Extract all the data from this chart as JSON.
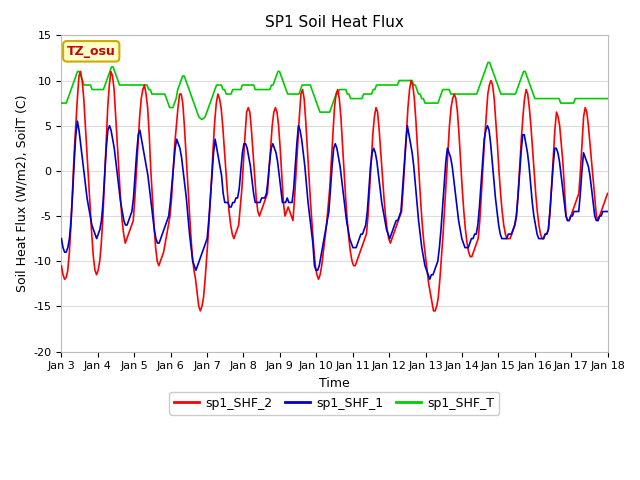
{
  "title": "SP1 Soil Heat Flux",
  "xlabel": "Time",
  "ylabel": "Soil Heat Flux (W/m2), SoilT (C)",
  "ylim": [
    -20,
    15
  ],
  "yticks": [
    -20,
    -15,
    -10,
    -5,
    0,
    5,
    10,
    15
  ],
  "xtick_labels": [
    "Jan 3",
    "Jan 4",
    "Jan 5",
    "Jan 6",
    "Jan 7",
    "Jan 8",
    "Jan 9",
    "Jan 10",
    "Jan 11",
    "Jan 12",
    "Jan 13",
    "Jan 14",
    "Jan 15",
    "Jan 16",
    "Jan 17",
    "Jan 18"
  ],
  "legend_labels": [
    "sp1_SHF_2",
    "sp1_SHF_1",
    "sp1_SHF_T"
  ],
  "legend_colors": [
    "#ff0000",
    "#0000cc",
    "#00cc00"
  ],
  "annotation_text": "TZ_osu",
  "annotation_bbox_facecolor": "#ffffcc",
  "annotation_bbox_edgecolor": "#ccaa00",
  "fig_bg_color": "#ffffff",
  "plot_bg_color": "#ffffff",
  "grid_color": "#dddddd",
  "title_fontsize": 11,
  "axis_fontsize": 9,
  "tick_fontsize": 8,
  "legend_fontsize": 9,
  "line_width": 1.2,
  "shf2_data": [
    -10.5,
    -11.5,
    -12.0,
    -11.8,
    -11.0,
    -9.0,
    -6.0,
    -2.0,
    2.0,
    5.0,
    8.0,
    10.5,
    11.0,
    10.0,
    8.0,
    5.0,
    2.0,
    -1.0,
    -4.0,
    -7.0,
    -9.5,
    -11.0,
    -11.5,
    -11.0,
    -10.0,
    -8.0,
    -5.0,
    -1.0,
    3.0,
    7.0,
    9.5,
    11.0,
    10.5,
    9.0,
    6.0,
    3.0,
    0.0,
    -3.0,
    -5.5,
    -7.0,
    -8.0,
    -7.5,
    -7.0,
    -6.5,
    -6.0,
    -5.5,
    -3.0,
    0.0,
    3.0,
    6.0,
    8.0,
    9.0,
    9.5,
    8.5,
    7.0,
    4.0,
    0.0,
    -3.0,
    -6.0,
    -8.5,
    -10.0,
    -10.5,
    -10.0,
    -9.5,
    -9.0,
    -8.0,
    -7.0,
    -6.0,
    -5.0,
    -3.0,
    0.0,
    3.0,
    5.0,
    7.0,
    8.5,
    8.5,
    7.5,
    5.0,
    2.0,
    -1.0,
    -4.0,
    -7.0,
    -9.5,
    -11.0,
    -12.0,
    -13.5,
    -15.0,
    -15.5,
    -15.0,
    -14.0,
    -12.0,
    -9.5,
    -7.0,
    -4.0,
    -1.0,
    2.5,
    5.5,
    7.5,
    8.5,
    8.0,
    7.0,
    5.0,
    2.5,
    0.0,
    -2.5,
    -4.5,
    -6.0,
    -7.0,
    -7.5,
    -7.0,
    -6.5,
    -6.0,
    -4.0,
    -2.0,
    1.0,
    4.0,
    6.5,
    7.0,
    6.5,
    4.5,
    2.0,
    -0.5,
    -3.0,
    -4.5,
    -5.0,
    -4.5,
    -4.0,
    -3.5,
    -3.0,
    -2.5,
    0.0,
    2.5,
    5.0,
    6.5,
    7.0,
    6.5,
    5.0,
    2.5,
    -0.5,
    -3.5,
    -5.0,
    -4.5,
    -4.0,
    -4.5,
    -5.0,
    -5.5,
    -3.0,
    0.0,
    3.0,
    6.0,
    8.5,
    9.0,
    8.0,
    5.5,
    2.5,
    -0.5,
    -3.5,
    -6.0,
    -8.5,
    -10.5,
    -11.5,
    -12.0,
    -11.5,
    -10.5,
    -9.0,
    -7.5,
    -6.0,
    -4.0,
    -2.0,
    1.0,
    4.0,
    7.0,
    8.5,
    9.0,
    8.0,
    6.0,
    3.0,
    0.0,
    -3.0,
    -5.5,
    -7.5,
    -9.0,
    -10.0,
    -10.5,
    -10.5,
    -10.0,
    -9.5,
    -9.0,
    -8.5,
    -8.0,
    -7.5,
    -7.0,
    -5.0,
    -2.0,
    1.0,
    4.0,
    6.0,
    7.0,
    6.5,
    4.5,
    2.0,
    -0.5,
    -3.0,
    -5.0,
    -6.5,
    -7.5,
    -8.0,
    -7.5,
    -7.0,
    -6.5,
    -6.0,
    -5.5,
    -5.0,
    -4.5,
    -2.0,
    1.0,
    4.0,
    7.0,
    9.0,
    10.0,
    9.5,
    8.0,
    5.5,
    2.5,
    -0.5,
    -3.5,
    -6.0,
    -8.0,
    -9.5,
    -11.0,
    -12.5,
    -13.5,
    -14.5,
    -15.5,
    -15.5,
    -15.0,
    -14.0,
    -12.0,
    -9.5,
    -7.0,
    -4.0,
    -1.0,
    2.0,
    5.0,
    7.0,
    8.0,
    8.5,
    8.0,
    6.5,
    4.0,
    1.0,
    -2.0,
    -4.5,
    -6.5,
    -8.0,
    -9.0,
    -9.5,
    -9.5,
    -9.0,
    -8.5,
    -8.0,
    -7.5,
    -5.5,
    -2.5,
    0.5,
    3.5,
    6.0,
    8.5,
    9.5,
    10.0,
    9.5,
    8.0,
    5.5,
    3.0,
    0.0,
    -2.5,
    -4.5,
    -6.0,
    -7.0,
    -7.5,
    -7.5,
    -7.5,
    -7.0,
    -6.5,
    -6.0,
    -5.0,
    -2.5,
    0.5,
    3.5,
    6.0,
    8.0,
    9.0,
    8.5,
    7.0,
    5.0,
    2.5,
    0.0,
    -2.5,
    -4.5,
    -6.0,
    -7.0,
    -7.5,
    -7.5,
    -7.0,
    -7.0,
    -6.5,
    -4.5,
    -1.5,
    1.5,
    4.5,
    6.5,
    6.0,
    5.0,
    3.0,
    1.0,
    -2.0,
    -5.0,
    -5.5,
    -5.5,
    -5.0,
    -4.5,
    -4.0,
    -3.5,
    -3.0,
    -2.5,
    0.0,
    3.0,
    6.0,
    7.0,
    6.5,
    5.0,
    3.0,
    1.0,
    -1.0,
    -3.0,
    -5.0,
    -5.5,
    -5.0,
    -4.5,
    -4.0,
    -3.5,
    -3.0,
    -2.5
  ],
  "shf1_data": [
    -7.5,
    -8.5,
    -9.0,
    -9.0,
    -8.5,
    -7.5,
    -5.5,
    -2.5,
    1.0,
    4.0,
    5.5,
    4.5,
    3.0,
    1.5,
    0.0,
    -1.5,
    -3.0,
    -4.0,
    -5.0,
    -6.0,
    -6.5,
    -7.0,
    -7.5,
    -7.0,
    -6.5,
    -5.5,
    -3.5,
    -0.5,
    2.5,
    4.5,
    5.0,
    4.5,
    3.5,
    2.5,
    1.0,
    -0.5,
    -2.0,
    -3.5,
    -4.5,
    -5.5,
    -6.0,
    -6.0,
    -5.5,
    -5.0,
    -4.5,
    -3.0,
    -0.5,
    2.0,
    4.0,
    4.5,
    3.5,
    2.5,
    1.5,
    0.5,
    -0.5,
    -2.0,
    -3.5,
    -5.0,
    -6.5,
    -7.5,
    -8.0,
    -8.0,
    -7.5,
    -7.0,
    -6.5,
    -6.0,
    -5.5,
    -5.0,
    -3.5,
    -1.5,
    0.5,
    2.5,
    3.5,
    3.0,
    2.5,
    1.5,
    0.0,
    -1.5,
    -3.0,
    -5.0,
    -7.0,
    -8.5,
    -10.0,
    -10.5,
    -11.0,
    -10.5,
    -10.0,
    -9.5,
    -9.0,
    -8.5,
    -8.0,
    -7.5,
    -5.5,
    -3.0,
    -0.5,
    2.0,
    3.5,
    2.5,
    1.5,
    0.5,
    -0.5,
    -2.5,
    -3.5,
    -3.5,
    -3.5,
    -4.0,
    -4.0,
    -3.5,
    -3.5,
    -3.0,
    -3.0,
    -2.0,
    0.0,
    2.0,
    3.0,
    3.0,
    2.5,
    1.5,
    0.5,
    -1.0,
    -2.5,
    -3.5,
    -3.5,
    -3.5,
    -3.5,
    -3.0,
    -3.0,
    -3.0,
    -2.5,
    -1.0,
    1.0,
    2.5,
    3.0,
    2.5,
    2.0,
    1.0,
    -0.5,
    -2.0,
    -3.5,
    -3.5,
    -3.5,
    -3.0,
    -3.5,
    -3.5,
    -3.5,
    -2.0,
    0.5,
    3.0,
    5.0,
    4.5,
    3.5,
    2.0,
    0.5,
    -1.5,
    -3.5,
    -5.0,
    -6.5,
    -8.0,
    -10.5,
    -11.0,
    -11.0,
    -10.5,
    -9.5,
    -8.5,
    -7.5,
    -6.5,
    -5.5,
    -4.5,
    -2.0,
    0.5,
    2.5,
    3.0,
    2.5,
    1.5,
    0.5,
    -1.0,
    -2.5,
    -4.0,
    -5.5,
    -6.5,
    -7.5,
    -8.0,
    -8.5,
    -8.5,
    -8.5,
    -8.0,
    -7.5,
    -7.0,
    -7.0,
    -6.5,
    -6.0,
    -4.5,
    -2.0,
    0.5,
    2.0,
    2.5,
    2.0,
    1.0,
    -0.5,
    -2.0,
    -3.5,
    -4.5,
    -5.5,
    -6.5,
    -7.0,
    -7.5,
    -7.0,
    -6.5,
    -6.0,
    -5.5,
    -5.5,
    -5.0,
    -4.5,
    -2.0,
    0.5,
    3.0,
    5.0,
    4.0,
    3.0,
    2.0,
    0.5,
    -1.5,
    -3.5,
    -5.5,
    -7.0,
    -8.5,
    -9.5,
    -10.5,
    -11.0,
    -11.5,
    -12.0,
    -11.5,
    -11.5,
    -11.0,
    -10.5,
    -10.0,
    -8.5,
    -6.5,
    -4.0,
    -1.5,
    1.0,
    2.5,
    2.0,
    1.5,
    0.5,
    -1.0,
    -2.5,
    -4.0,
    -5.5,
    -6.5,
    -7.5,
    -8.0,
    -8.5,
    -8.5,
    -8.5,
    -8.0,
    -7.5,
    -7.5,
    -7.0,
    -7.0,
    -6.0,
    -4.0,
    -1.5,
    1.0,
    3.5,
    4.5,
    5.0,
    4.5,
    3.0,
    1.0,
    -1.0,
    -3.0,
    -4.5,
    -6.0,
    -7.0,
    -7.5,
    -7.5,
    -7.5,
    -7.5,
    -7.0,
    -7.0,
    -7.0,
    -6.5,
    -6.0,
    -5.0,
    -3.0,
    -0.5,
    2.0,
    4.0,
    4.0,
    3.0,
    2.0,
    0.5,
    -1.5,
    -3.5,
    -5.0,
    -6.0,
    -7.0,
    -7.5,
    -7.5,
    -7.5,
    -7.5,
    -7.0,
    -7.0,
    -6.5,
    -4.5,
    -2.0,
    0.5,
    2.5,
    2.5,
    2.0,
    1.0,
    -0.5,
    -2.0,
    -3.5,
    -5.0,
    -5.5,
    -5.5,
    -5.0,
    -5.0,
    -4.5,
    -4.5,
    -4.5,
    -4.5,
    -2.5,
    0.0,
    2.0,
    1.5,
    1.0,
    0.5,
    -0.5,
    -2.0,
    -3.5,
    -5.0,
    -5.5,
    -5.5,
    -5.0,
    -5.0,
    -4.5,
    -4.5,
    -4.5,
    -4.5
  ],
  "shfT_data": [
    7.5,
    7.5,
    7.5,
    7.5,
    8.0,
    8.5,
    9.0,
    9.5,
    10.0,
    10.5,
    11.0,
    11.0,
    10.5,
    10.0,
    9.5,
    9.5,
    9.5,
    9.5,
    9.5,
    9.0,
    9.0,
    9.0,
    9.0,
    9.0,
    9.0,
    9.0,
    9.0,
    9.5,
    10.0,
    10.5,
    11.0,
    11.5,
    11.5,
    11.0,
    10.5,
    10.0,
    9.5,
    9.5,
    9.5,
    9.5,
    9.5,
    9.5,
    9.5,
    9.5,
    9.5,
    9.5,
    9.5,
    9.5,
    9.5,
    9.5,
    9.5,
    9.5,
    9.5,
    9.5,
    9.0,
    9.0,
    8.5,
    8.5,
    8.5,
    8.5,
    8.5,
    8.5,
    8.5,
    8.5,
    8.5,
    8.0,
    7.5,
    7.0,
    7.0,
    7.0,
    7.5,
    8.0,
    9.0,
    9.5,
    10.0,
    10.5,
    10.5,
    10.0,
    9.5,
    9.0,
    8.5,
    8.0,
    7.5,
    7.0,
    6.5,
    6.0,
    5.8,
    5.7,
    5.8,
    6.0,
    6.5,
    7.0,
    7.5,
    8.0,
    8.5,
    9.0,
    9.5,
    9.5,
    9.5,
    9.5,
    9.0,
    9.0,
    8.5,
    8.5,
    8.5,
    8.5,
    9.0,
    9.0,
    9.0,
    9.0,
    9.0,
    9.0,
    9.5,
    9.5,
    9.5,
    9.5,
    9.5,
    9.5,
    9.5,
    9.5,
    9.0,
    9.0,
    9.0,
    9.0,
    9.0,
    9.0,
    9.0,
    9.0,
    9.0,
    9.0,
    9.5,
    9.5,
    10.0,
    10.5,
    11.0,
    11.0,
    10.5,
    10.0,
    9.5,
    9.0,
    8.5,
    8.5,
    8.5,
    8.5,
    8.5,
    8.5,
    8.5,
    8.5,
    9.0,
    9.5,
    9.5,
    9.5,
    9.5,
    9.5,
    9.5,
    9.0,
    8.5,
    8.0,
    7.5,
    7.0,
    6.5,
    6.5,
    6.5,
    6.5,
    6.5,
    6.5,
    6.5,
    7.0,
    7.5,
    8.0,
    8.5,
    8.5,
    9.0,
    9.0,
    9.0,
    9.0,
    9.0,
    8.5,
    8.5,
    8.0,
    8.0,
    8.0,
    8.0,
    8.0,
    8.0,
    8.0,
    8.0,
    8.5,
    8.5,
    8.5,
    8.5,
    8.5,
    8.5,
    9.0,
    9.0,
    9.5,
    9.5,
    9.5,
    9.5,
    9.5,
    9.5,
    9.5,
    9.5,
    9.5,
    9.5,
    9.5,
    9.5,
    9.5,
    9.5,
    10.0,
    10.0,
    10.0,
    10.0,
    10.0,
    10.0,
    10.0,
    10.0,
    10.0,
    9.5,
    9.5,
    9.0,
    8.5,
    8.5,
    8.0,
    8.0,
    7.5,
    7.5,
    7.5,
    7.5,
    7.5,
    7.5,
    7.5,
    7.5,
    7.5,
    8.0,
    8.5,
    9.0,
    9.0,
    9.0,
    9.0,
    9.0,
    8.5,
    8.5,
    8.5,
    8.5,
    8.5,
    8.5,
    8.5,
    8.5,
    8.5,
    8.5,
    8.5,
    8.5,
    8.5,
    8.5,
    8.5,
    8.5,
    8.5,
    9.0,
    9.5,
    10.0,
    10.5,
    11.0,
    11.5,
    12.0,
    12.0,
    11.5,
    11.0,
    10.5,
    10.0,
    9.5,
    9.0,
    8.5,
    8.5,
    8.5,
    8.5,
    8.5,
    8.5,
    8.5,
    8.5,
    8.5,
    8.5,
    9.0,
    9.5,
    10.0,
    10.5,
    11.0,
    11.0,
    10.5,
    10.0,
    9.5,
    9.0,
    8.5,
    8.0,
    8.0,
    8.0,
    8.0,
    8.0,
    8.0,
    8.0,
    8.0,
    8.0,
    8.0,
    8.0,
    8.0,
    8.0,
    8.0,
    8.0,
    8.0,
    7.5,
    7.5,
    7.5,
    7.5,
    7.5,
    7.5,
    7.5,
    7.5,
    7.5,
    8.0,
    8.0,
    8.0,
    8.0,
    8.0,
    8.0,
    8.0,
    8.0,
    8.0,
    8.0,
    8.0,
    8.0,
    8.0,
    8.0,
    8.0,
    8.0,
    8.0,
    8.0,
    8.0,
    8.0,
    8.0
  ]
}
